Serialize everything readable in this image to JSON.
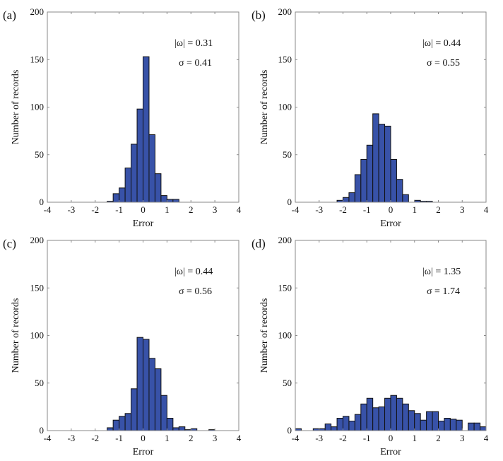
{
  "colors": {
    "bar": "#3852a8",
    "bar_edge": "#111111",
    "axis": "#8a8a8a"
  },
  "chart_data": [
    {
      "type": "bar",
      "panel_label": "(a)",
      "xlabel": "Error",
      "ylabel": "Number of records",
      "xlim": [
        -4,
        4
      ],
      "ylim": [
        0,
        200
      ],
      "xticks": [
        "-4",
        "-3",
        "-2",
        "-1",
        "0",
        "1",
        "2",
        "3",
        "4"
      ],
      "yticks": [
        "0",
        "50",
        "100",
        "150",
        "200"
      ],
      "bin_width": 0.25,
      "bin_start": -1.5,
      "values": [
        1,
        9,
        15,
        36,
        61,
        98,
        153,
        71,
        30,
        7,
        3,
        3
      ],
      "annotation": {
        "omega": "|ω| = 0.31",
        "sigma": "σ = 0.41"
      }
    },
    {
      "type": "bar",
      "panel_label": "(b)",
      "xlabel": "Error",
      "ylabel": "Number of records",
      "xlim": [
        -4,
        4
      ],
      "ylim": [
        0,
        200
      ],
      "xticks": [
        "-4",
        "-3",
        "-2",
        "-1",
        "0",
        "1",
        "2",
        "3",
        "4"
      ],
      "yticks": [
        "0",
        "50",
        "100",
        "150",
        "200"
      ],
      "bin_width": 0.25,
      "bin_start": -2.25,
      "values": [
        2,
        5,
        10,
        29,
        45,
        60,
        93,
        82,
        80,
        45,
        24,
        8,
        0,
        2,
        1,
        1
      ],
      "annotation": {
        "omega": "|ω| = 0.44",
        "sigma": "σ = 0.55"
      }
    },
    {
      "type": "bar",
      "panel_label": "(c)",
      "xlabel": "Error",
      "ylabel": "Number of records",
      "xlim": [
        -4,
        4
      ],
      "ylim": [
        0,
        200
      ],
      "xticks": [
        "-4",
        "-3",
        "-2",
        "-1",
        "0",
        "1",
        "2",
        "3",
        "4"
      ],
      "yticks": [
        "0",
        "50",
        "100",
        "150",
        "200"
      ],
      "bin_width": 0.25,
      "bin_start": -1.5,
      "values": [
        3,
        11,
        15,
        18,
        44,
        98,
        96,
        76,
        65,
        37,
        13,
        3,
        4,
        1,
        2,
        0,
        0,
        1
      ],
      "annotation": {
        "omega": "|ω| = 0.44",
        "sigma": "σ = 0.56"
      }
    },
    {
      "type": "bar",
      "panel_label": "(d)",
      "xlabel": "Error",
      "ylabel": "Number of records",
      "xlim": [
        -4,
        4
      ],
      "ylim": [
        0,
        200
      ],
      "xticks": [
        "-4",
        "-3",
        "-2",
        "-1",
        "0",
        "1",
        "2",
        "3",
        "4"
      ],
      "yticks": [
        "0",
        "50",
        "100",
        "150",
        "200"
      ],
      "bin_width": 0.25,
      "bin_start": -4,
      "values": [
        2,
        0,
        0,
        2,
        2,
        7,
        4,
        13,
        15,
        10,
        17,
        28,
        34,
        24,
        25,
        34,
        37,
        34,
        28,
        21,
        18,
        11,
        20,
        20,
        10,
        13,
        12,
        11,
        0,
        8,
        8,
        4
      ],
      "annotation": {
        "omega": "|ω| = 1.35",
        "sigma": "σ = 1.74"
      }
    }
  ]
}
